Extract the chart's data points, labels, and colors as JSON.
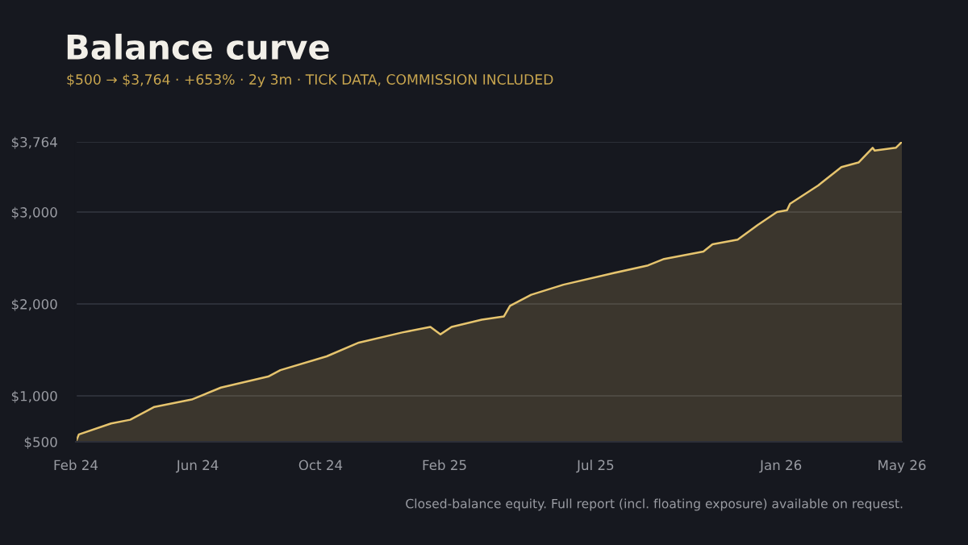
{
  "chart_data": {
    "type": "area",
    "title": "Balance curve",
    "subtitle": "$500 → $3,764 · +653% · 2y 3m · TICK DATA, COMMISSION INCLUDED",
    "annotations": [
      "Closed-balance equity. Full report (incl. floating exposure) available on request."
    ],
    "x": [
      "2024-02-01",
      "2024-02-04",
      "2024-03-07",
      "2024-03-26",
      "2024-04-19",
      "2024-05-26",
      "2024-06-24",
      "2024-08-10",
      "2024-08-22",
      "2024-10-07",
      "2024-11-08",
      "2024-12-21",
      "2025-01-18",
      "2025-01-28",
      "2025-02-08",
      "2025-03-10",
      "2025-04-01",
      "2025-04-07",
      "2025-04-28",
      "2025-05-30",
      "2025-07-16",
      "2025-08-22",
      "2025-09-07",
      "2025-10-16",
      "2025-10-25",
      "2025-11-19",
      "2025-12-09",
      "2025-12-28",
      "2026-01-07",
      "2026-01-10",
      "2026-02-07",
      "2026-03-02",
      "2026-03-19",
      "2026-04-02",
      "2026-04-04",
      "2026-04-25",
      "2026-05-01"
    ],
    "series": [
      {
        "color": "#e6c46e",
        "values": [
          500,
          580,
          700,
          740,
          880,
          960,
          1090,
          1210,
          1280,
          1430,
          1580,
          1690,
          1750,
          1670,
          1750,
          1830,
          1865,
          1980,
          2100,
          2210,
          2330,
          2420,
          2490,
          2570,
          2650,
          2700,
          2860,
          3000,
          3020,
          3090,
          3290,
          3490,
          3540,
          3700,
          3670,
          3700,
          3764
        ]
      }
    ],
    "xlim": [
      "2024-02-01",
      "2026-05-01"
    ],
    "xticks": [
      {
        "value": "2024-02-01",
        "label": "Feb 24"
      },
      {
        "value": "2024-06-01",
        "label": "Jun 24"
      },
      {
        "value": "2024-10-01",
        "label": "Oct 24"
      },
      {
        "value": "2025-02-01",
        "label": "Feb 25"
      },
      {
        "value": "2025-07-01",
        "label": "Jul 25"
      },
      {
        "value": "2026-01-01",
        "label": "Jan 26"
      },
      {
        "value": "2026-05-01",
        "label": "May 26"
      }
    ],
    "ylim": [
      500,
      3764
    ],
    "yticks": [
      {
        "value": 500,
        "label": "$500"
      },
      {
        "value": 1000,
        "label": "$1,000"
      },
      {
        "value": 2000,
        "label": "$2,000"
      },
      {
        "value": 3000,
        "label": "$3,000"
      },
      {
        "value": 3764,
        "label": "$3,764"
      }
    ],
    "grid": "y"
  }
}
